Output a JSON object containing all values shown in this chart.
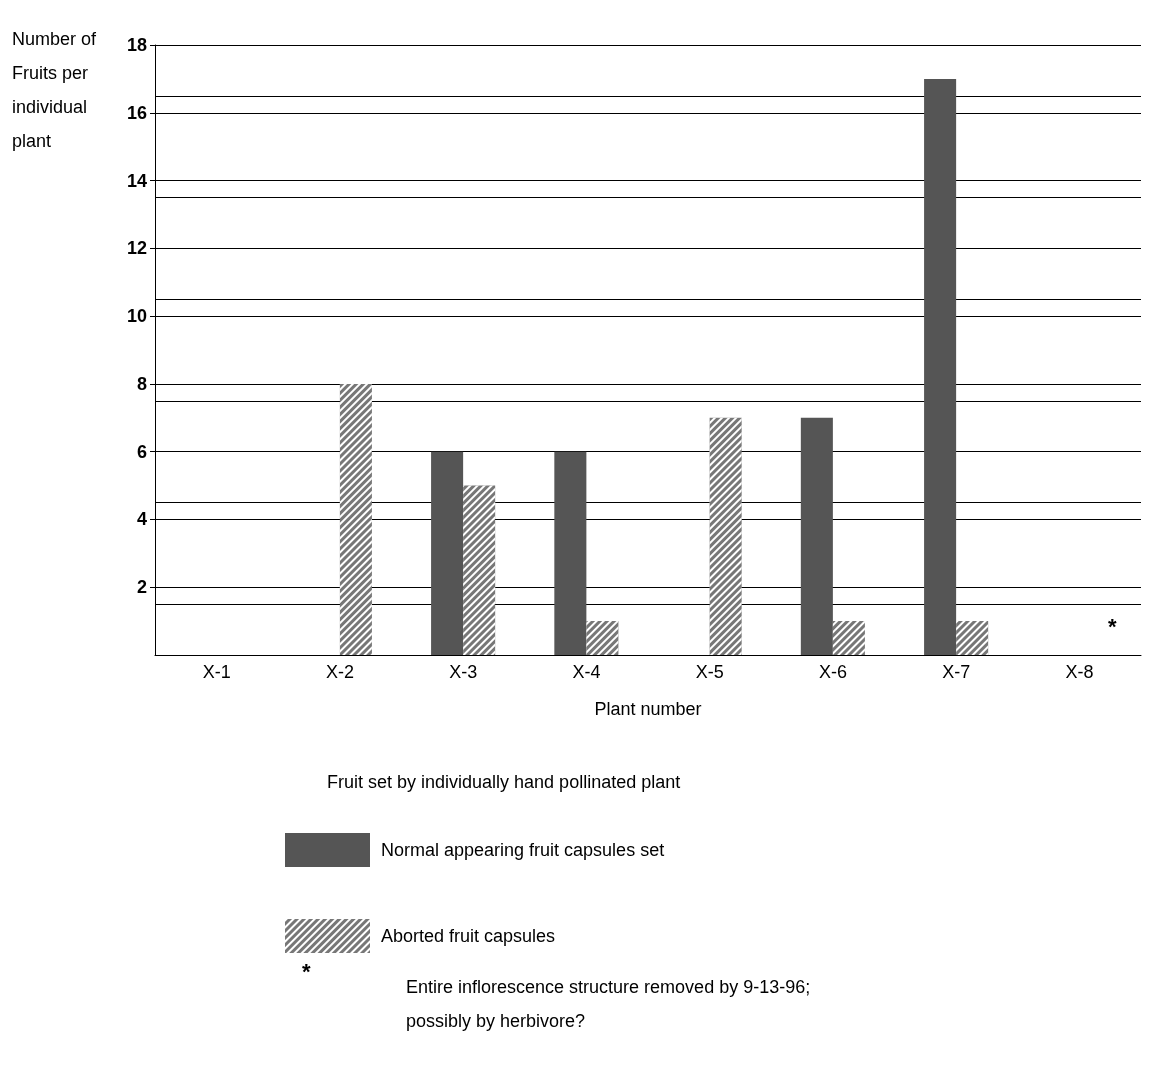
{
  "chart_data": {
    "type": "bar",
    "title": "Fruit set by individually hand pollinated plant",
    "xlabel": "Plant number",
    "ylabel": "Number of Fruits per individual plant",
    "categories": [
      "X-1",
      "X-2",
      "X-3",
      "X-4",
      "X-5",
      "X-6",
      "X-7",
      "X-8"
    ],
    "series": [
      {
        "name": "Normal appearing fruit capsules set",
        "color": "#555555",
        "values": [
          0,
          null,
          6,
          6,
          null,
          7,
          17,
          null
        ]
      },
      {
        "name": "Aborted fruit capsules",
        "color": "#777777",
        "values": [
          null,
          8,
          5,
          1,
          7,
          1,
          1,
          null
        ]
      }
    ],
    "ylim": [
      0,
      18
    ],
    "yticks": [
      2,
      4,
      6,
      8,
      10,
      12,
      14,
      16,
      18
    ],
    "grid": "y",
    "legend": "bottom left",
    "annotations": [
      "*",
      "*",
      "Entire inflorescence structure removed by 9-13-96; possibly by herbivore?"
    ]
  }
}
